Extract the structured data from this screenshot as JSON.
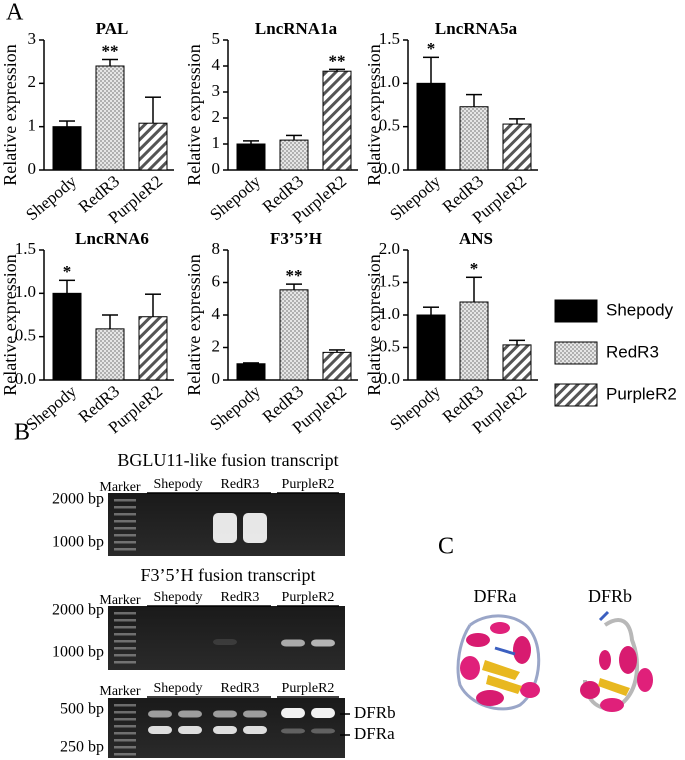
{
  "panel_a": {
    "label": "A"
  },
  "legend": {
    "series": [
      {
        "name": "Shepody",
        "pattern": "solid",
        "color": "#000000"
      },
      {
        "name": "RedR3",
        "pattern": "crosshatch",
        "color": "#b0b0b0"
      },
      {
        "name": "PurpleR2",
        "pattern": "diagonal",
        "color": "#444444"
      }
    ]
  },
  "chart_data": [
    {
      "type": "bar",
      "title": "PAL",
      "y_label": "Relative expression",
      "categories": [
        "Shepody",
        "RedR3",
        "PurpleR2"
      ],
      "values": [
        1.0,
        2.4,
        1.08
      ],
      "errors": [
        0.13,
        0.15,
        0.6
      ],
      "significance": [
        null,
        "**",
        null
      ],
      "ylim": [
        0,
        3
      ],
      "yticks": [
        0,
        1,
        2,
        3
      ]
    },
    {
      "type": "bar",
      "title": "LncRNA1a",
      "y_label": "Relative expression",
      "categories": [
        "Shepody",
        "RedR3",
        "PurpleR2"
      ],
      "values": [
        1.0,
        1.15,
        3.8
      ],
      "errors": [
        0.12,
        0.18,
        0.07
      ],
      "significance": [
        null,
        null,
        "**"
      ],
      "ylim": [
        0,
        5
      ],
      "yticks": [
        0,
        1,
        2,
        3,
        4,
        5
      ]
    },
    {
      "type": "bar",
      "title": "LncRNA5a",
      "y_label": "Relative expression",
      "categories": [
        "Shepody",
        "RedR3",
        "PurpleR2"
      ],
      "values": [
        1.0,
        0.73,
        0.53
      ],
      "errors": [
        0.3,
        0.14,
        0.06
      ],
      "significance": [
        "*",
        null,
        null
      ],
      "ylim": [
        0,
        1.5
      ],
      "yticks": [
        {
          "value": 0,
          "label": "0.0"
        },
        0.5,
        {
          "value": 1,
          "label": "1.0"
        },
        1.5
      ]
    },
    {
      "type": "bar",
      "title": "LncRNA6",
      "y_label": "Relative expression",
      "categories": [
        "Shepody",
        "RedR3",
        "PurpleR2"
      ],
      "values": [
        1.0,
        0.59,
        0.73
      ],
      "errors": [
        0.15,
        0.16,
        0.26
      ],
      "significance": [
        "*",
        null,
        null
      ],
      "ylim": [
        0,
        1.5
      ],
      "yticks": [
        {
          "value": 0,
          "label": "0.0"
        },
        0.5,
        {
          "value": 1,
          "label": "1.0"
        },
        1.5
      ]
    },
    {
      "type": "bar",
      "title": "F3’5’H",
      "y_label": "Relative expression",
      "categories": [
        "Shepody",
        "RedR3",
        "PurpleR2"
      ],
      "values": [
        1.0,
        5.55,
        1.7
      ],
      "errors": [
        0.05,
        0.35,
        0.15
      ],
      "significance": [
        null,
        "**",
        null
      ],
      "ylim": [
        0,
        8
      ],
      "yticks": [
        0,
        2,
        4,
        6,
        8
      ]
    },
    {
      "type": "bar",
      "title": "ANS",
      "y_label": "Relative expression",
      "categories": [
        "Shepody",
        "RedR3",
        "PurpleR2"
      ],
      "values": [
        1.0,
        1.2,
        0.54
      ],
      "errors": [
        0.12,
        0.38,
        0.07
      ],
      "significance": [
        null,
        "*",
        null
      ],
      "ylim": [
        0,
        2
      ],
      "yticks": [
        {
          "value": 0,
          "label": "0.0"
        },
        0.5,
        {
          "value": 1,
          "label": "1.0"
        },
        1.5,
        {
          "value": 2,
          "label": "2.0"
        }
      ]
    }
  ],
  "panel_b": {
    "label": "B",
    "gels": [
      {
        "title": "BGLU11-like fusion transcript",
        "marker": "Marker",
        "lanes": [
          "Shepody",
          "RedR3",
          "PurpleR2"
        ],
        "ladder": [
          "2000 bp",
          "1000 bp"
        ]
      },
      {
        "title": "F3’5’H fusion transcript",
        "marker": "Marker",
        "lanes": [
          "Shepody",
          "RedR3",
          "PurpleR2"
        ],
        "ladder": [
          "2000 bp",
          "1000 bp"
        ]
      },
      {
        "marker": "Marker",
        "lanes": [
          "Shepody",
          "RedR3",
          "PurpleR2"
        ],
        "ladder": [
          "500 bp",
          "250 bp"
        ],
        "bands": [
          "DFRb",
          "DFRa"
        ]
      }
    ]
  },
  "panel_c": {
    "label": "C",
    "structures": [
      "DFRa",
      "DFRb"
    ]
  }
}
